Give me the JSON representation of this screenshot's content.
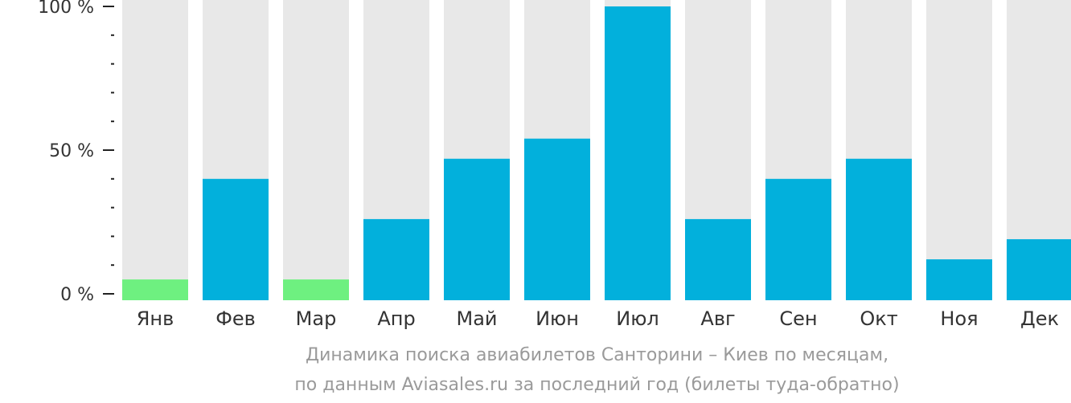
{
  "chart_data": {
    "type": "bar",
    "categories": [
      "Янв",
      "Фев",
      "Мар",
      "Апр",
      "Май",
      "Июн",
      "Июл",
      "Авг",
      "Сен",
      "Окт",
      "Ноя",
      "Дек"
    ],
    "values": [
      5,
      40,
      5,
      26,
      47,
      54,
      100,
      26,
      40,
      47,
      12,
      19
    ],
    "highlight": [
      true,
      false,
      true,
      false,
      false,
      false,
      false,
      false,
      false,
      false,
      false,
      false
    ],
    "ylim": [
      0,
      100
    ],
    "yticks": [
      {
        "value": 100,
        "label": "100 %"
      },
      {
        "value": 50,
        "label": "50 %"
      },
      {
        "value": 0,
        "label": "0 %"
      }
    ],
    "minor_tick_step": 10,
    "colors": {
      "bar": "#02b0dc",
      "highlight": "#6ef080",
      "track": "#e8e8e8",
      "axis": "#222222"
    }
  },
  "caption": {
    "line1": "Динамика поиска авиабилетов Санторини – Киев по месяцам,",
    "line2": "по данным Aviasales.ru за последний год (билеты туда-обратно)"
  }
}
